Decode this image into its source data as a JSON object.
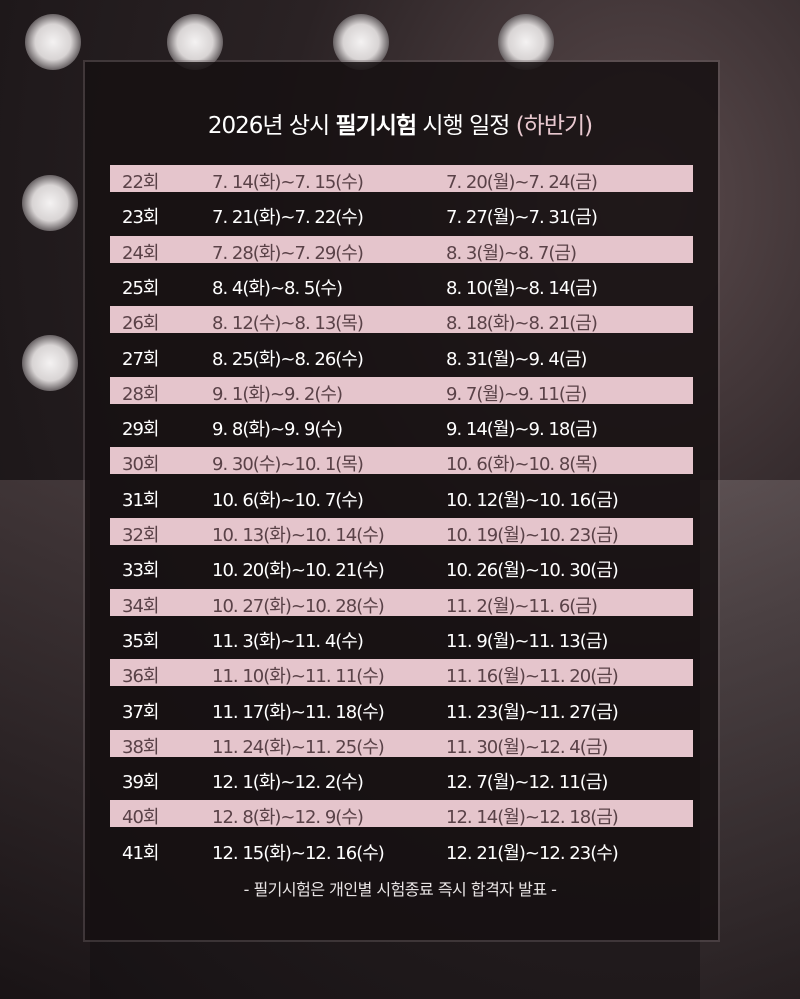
{
  "title": {
    "year": "2026년 상시 ",
    "bold": "필기시험",
    "rest": " 시행 일정 ",
    "sub": "(하반기)"
  },
  "colors": {
    "pink_row": "#e5c5cc",
    "panel": "#161012"
  },
  "rows": [
    [
      "22회",
      "7. 14(화)~7. 15(수)",
      "7. 20(월)~7. 24(금)"
    ],
    [
      "23회",
      "7. 21(화)~7. 22(수)",
      "7. 27(월)~7. 31(금)"
    ],
    [
      "24회",
      "7. 28(화)~7. 29(수)",
      "8. 3(월)~8. 7(금)"
    ],
    [
      "25회",
      "8. 4(화)~8. 5(수)",
      "8. 10(월)~8. 14(금)"
    ],
    [
      "26회",
      "8. 12(수)~8. 13(목)",
      "8. 18(화)~8. 21(금)"
    ],
    [
      "27회",
      "8. 25(화)~8. 26(수)",
      "8. 31(월)~9. 4(금)"
    ],
    [
      "28회",
      "9. 1(화)~9. 2(수)",
      "9. 7(월)~9. 11(금)"
    ],
    [
      "29회",
      "9. 8(화)~9. 9(수)",
      "9. 14(월)~9. 18(금)"
    ],
    [
      "30회",
      "9. 30(수)~10. 1(목)",
      "10. 6(화)~10. 8(목)"
    ],
    [
      "31회",
      "10. 6(화)~10. 7(수)",
      "10. 12(월)~10. 16(금)"
    ],
    [
      "32회",
      "10. 13(화)~10. 14(수)",
      "10. 19(월)~10. 23(금)"
    ],
    [
      "33회",
      "10. 20(화)~10. 21(수)",
      "10. 26(월)~10. 30(금)"
    ],
    [
      "34회",
      "10. 27(화)~10. 28(수)",
      "11. 2(월)~11. 6(금)"
    ],
    [
      "35회",
      "11. 3(화)~11. 4(수)",
      "11. 9(월)~11. 13(금)"
    ],
    [
      "36회",
      "11. 10(화)~11. 11(수)",
      "11. 16(월)~11. 20(금)"
    ],
    [
      "37회",
      "11. 17(화)~11. 18(수)",
      "11. 23(월)~11. 27(금)"
    ],
    [
      "38회",
      "11. 24(화)~11. 25(수)",
      "11. 30(월)~12. 4(금)"
    ],
    [
      "39회",
      "12. 1(화)~12. 2(수)",
      "12. 7(월)~12. 11(금)"
    ],
    [
      "40회",
      "12. 8(화)~12. 9(수)",
      "12. 14(월)~12. 18(금)"
    ],
    [
      "41회",
      "12. 15(화)~12. 16(수)",
      "12. 21(월)~12. 23(수)"
    ]
  ],
  "footnote": "- 필기시험은 개인별 시험종료 즉시 합격자 발표 -"
}
